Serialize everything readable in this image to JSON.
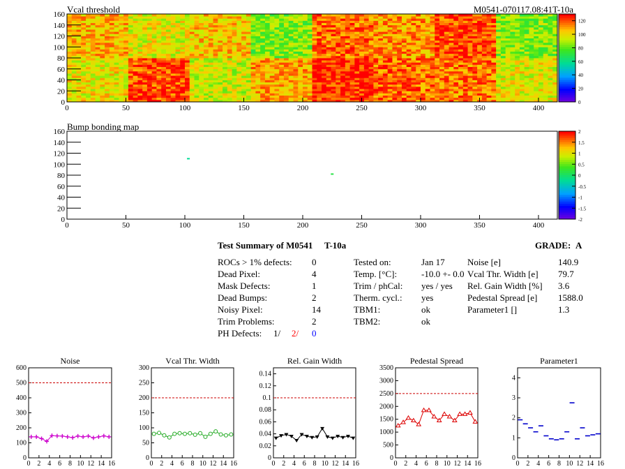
{
  "charts": {
    "vcal": {
      "title": "Vcal threshold",
      "module_label": "M0541-070117.08:41T-10a",
      "yticks": [
        "0",
        "20",
        "40",
        "60",
        "80",
        "100",
        "120",
        "140",
        "160"
      ],
      "xticks": [
        "0",
        "50",
        "100",
        "150",
        "200",
        "250",
        "300",
        "350",
        "400"
      ],
      "zticks": [
        "0",
        "20",
        "40",
        "60",
        "80",
        "100",
        "120"
      ]
    },
    "bump": {
      "title": "Bump bonding map",
      "yticks": [
        "0",
        "20",
        "40",
        "60",
        "80",
        "100",
        "120",
        "140",
        "160"
      ],
      "xticks": [
        "0",
        "50",
        "100",
        "150",
        "200",
        "250",
        "300",
        "350",
        "400"
      ],
      "zticks": [
        "-2",
        "-1.5",
        "-1",
        "-0.5",
        "0",
        "0.5",
        "1",
        "1.5",
        "2"
      ]
    }
  },
  "summary": {
    "title": "Test Summary of M0541",
    "temp_tag": "T-10a",
    "grade_label": "GRADE:",
    "grade": "A",
    "defects": [
      {
        "label": "ROCs > 1% defects:",
        "value": "0"
      },
      {
        "label": "Dead Pixel:",
        "value": "4"
      },
      {
        "label": "Mask Defects:",
        "value": "1"
      },
      {
        "label": "Dead Bumps:",
        "value": "2"
      },
      {
        "label": "Noisy Pixel:",
        "value": "14"
      },
      {
        "label": "Trim Problems:",
        "value": "2"
      }
    ],
    "ph_label": "PH Defects:",
    "ph_values": [
      "1/",
      "2/",
      "0"
    ],
    "ph_colors": [
      "#000000",
      "#ff0000",
      "#0000ff"
    ],
    "conditions": [
      {
        "label": "Tested on:",
        "value": "Jan 17"
      },
      {
        "label": "Temp. [°C]:",
        "value": "-10.0 +- 0.0"
      },
      {
        "label": "Trim / phCal:",
        "value": "yes / yes"
      },
      {
        "label": "Therm. cycl.:",
        "value": "yes"
      },
      {
        "label": "TBM1:",
        "value": "ok"
      },
      {
        "label": "TBM2:",
        "value": "ok"
      }
    ],
    "metrics": [
      {
        "label": "Noise [e]",
        "value": "140.9"
      },
      {
        "label": "Vcal Thr. Width [e]",
        "value": "79.7"
      },
      {
        "label": "Rel. Gain Width [%]",
        "value": "3.6"
      },
      {
        "label": "Pedestal Spread [e]",
        "value": "1588.0"
      },
      {
        "label": "Parameter1 []",
        "value": "1.3"
      }
    ]
  },
  "chart_data": [
    {
      "type": "heatmap",
      "title": "Vcal threshold",
      "xlim": [
        0,
        416
      ],
      "ylim": [
        0,
        160
      ],
      "zlim": [
        0,
        130
      ],
      "roc_grid": {
        "cols": 8,
        "rows": 2,
        "roc_width": 52,
        "roc_height": 80
      },
      "roc_mean_bottom_row": [
        100,
        122,
        95,
        110,
        126,
        118,
        116,
        98
      ],
      "roc_mean_top_row": [
        108,
        98,
        105,
        85,
        118,
        112,
        122,
        85
      ]
    },
    {
      "type": "heatmap",
      "title": "Bump bonding map",
      "xlim": [
        0,
        416
      ],
      "ylim": [
        0,
        160
      ],
      "zlim": [
        -2,
        2
      ],
      "hits": [
        {
          "x": 225,
          "y": 82,
          "z": 0.2
        },
        {
          "x": 103,
          "y": 110,
          "z": -0.2
        }
      ]
    },
    {
      "type": "line",
      "title": "Noise",
      "x": [
        0,
        1,
        2,
        3,
        4,
        5,
        6,
        7,
        8,
        9,
        10,
        11,
        12,
        13,
        14,
        15
      ],
      "values": [
        140,
        140,
        128,
        110,
        148,
        146,
        145,
        140,
        135,
        145,
        140,
        145,
        133,
        140,
        146,
        140
      ],
      "ylim": [
        0,
        600
      ],
      "yticks": [
        "0",
        "100",
        "200",
        "300",
        "400",
        "500",
        "600"
      ],
      "xticks": [
        "0",
        "2",
        "4",
        "6",
        "8",
        "10",
        "12",
        "14",
        "16"
      ],
      "cut": 500,
      "color": "#cc00cc",
      "marker": "plus"
    },
    {
      "type": "line",
      "title": "Vcal Thr. Width",
      "x": [
        0,
        1,
        2,
        3,
        4,
        5,
        6,
        7,
        8,
        9,
        10,
        11,
        12,
        13,
        14,
        15
      ],
      "values": [
        80,
        83,
        75,
        68,
        80,
        82,
        80,
        82,
        77,
        82,
        70,
        80,
        88,
        78,
        75,
        78
      ],
      "ylim": [
        0,
        300
      ],
      "yticks": [
        "0",
        "50",
        "100",
        "150",
        "200",
        "250",
        "300"
      ],
      "xticks": [
        "0",
        "2",
        "4",
        "6",
        "8",
        "10",
        "12",
        "14",
        "16"
      ],
      "cut": 200,
      "color": "#22aa22",
      "marker": "circle"
    },
    {
      "type": "line",
      "title": "Rel. Gain Width",
      "x": [
        0,
        1,
        2,
        3,
        4,
        5,
        6,
        7,
        8,
        9,
        10,
        11,
        12,
        13,
        14,
        15
      ],
      "values": [
        0.033,
        0.037,
        0.039,
        0.036,
        0.029,
        0.039,
        0.036,
        0.034,
        0.035,
        0.049,
        0.035,
        0.033,
        0.036,
        0.034,
        0.036,
        0.033
      ],
      "ylim": [
        0,
        0.15
      ],
      "yticks": [
        "0",
        "0.02",
        "0.04",
        "0.06",
        "0.08",
        "0.1",
        "0.12",
        "0.14"
      ],
      "xticks": [
        "0",
        "2",
        "4",
        "6",
        "8",
        "10",
        "12",
        "14",
        "16"
      ],
      "cut": 0.1,
      "color": "#000000",
      "marker": "triangle-down"
    },
    {
      "type": "line",
      "title": "Pedestal Spread",
      "x": [
        0,
        1,
        2,
        3,
        4,
        5,
        6,
        7,
        8,
        9,
        10,
        11,
        12,
        13,
        14,
        15
      ],
      "values": [
        1250,
        1380,
        1550,
        1450,
        1300,
        1850,
        1850,
        1600,
        1450,
        1700,
        1600,
        1450,
        1700,
        1700,
        1750,
        1400
      ],
      "ylim": [
        0,
        3500
      ],
      "yticks": [
        "0",
        "500",
        "1000",
        "1500",
        "2000",
        "2500",
        "3000",
        "3500"
      ],
      "xticks": [
        "0",
        "2",
        "4",
        "6",
        "8",
        "10",
        "12",
        "14",
        "16"
      ],
      "cut": 2500,
      "color": "#dd0000",
      "marker": "triangle-up"
    },
    {
      "type": "scatter",
      "title": "Parameter1",
      "x": [
        0,
        1,
        2,
        3,
        4,
        5,
        6,
        7,
        8,
        9,
        10,
        11,
        12,
        13,
        14,
        15
      ],
      "values": [
        1.9,
        1.7,
        1.5,
        1.3,
        1.6,
        1.1,
        0.95,
        0.9,
        0.95,
        1.3,
        2.75,
        0.95,
        1.5,
        1.1,
        1.15,
        1.2
      ],
      "ylim": [
        0,
        4.5
      ],
      "yticks": [
        "0",
        "1",
        "2",
        "3",
        "4"
      ],
      "xticks": [
        "0",
        "2",
        "4",
        "6",
        "8",
        "10",
        "12",
        "14",
        "16"
      ],
      "color": "#0000cc",
      "marker": "dash"
    }
  ]
}
